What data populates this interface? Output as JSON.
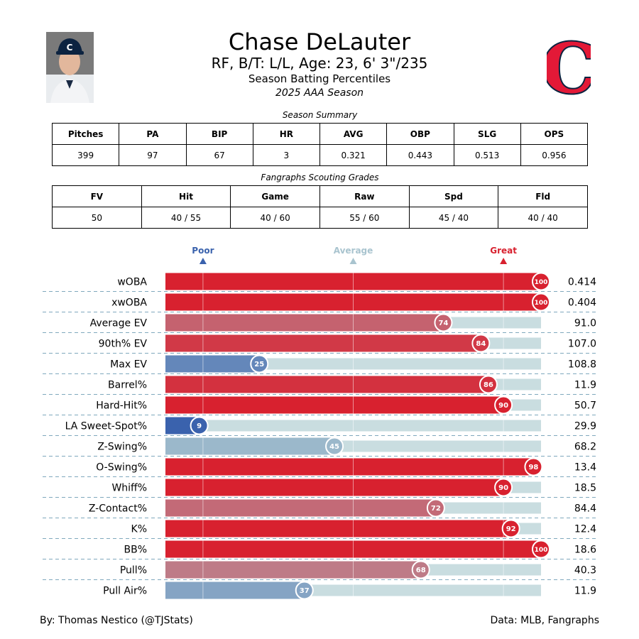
{
  "header": {
    "player_name": "Chase DeLauter",
    "player_info": "RF, B/T: L/L, Age: 23, 6' 3\"/235",
    "report_title": "Season Batting Percentiles",
    "season_label": "2025 AAA Season",
    "logo_letter": "C",
    "logo_color": "#e31937",
    "logo_outline": "#0c2340"
  },
  "summary": {
    "caption": "Season Summary",
    "columns": [
      "Pitches",
      "PA",
      "BIP",
      "HR",
      "AVG",
      "OBP",
      "SLG",
      "OPS"
    ],
    "values": [
      "399",
      "97",
      "67",
      "3",
      "0.321",
      "0.443",
      "0.513",
      "0.956"
    ]
  },
  "grades": {
    "caption": "Fangraphs Scouting Grades",
    "columns": [
      "FV",
      "Hit",
      "Game",
      "Raw",
      "Spd",
      "Fld"
    ],
    "values": [
      "50",
      "40 / 55",
      "40 / 60",
      "55 / 60",
      "45 / 40",
      "40 / 40"
    ]
  },
  "chart_data": {
    "type": "bar",
    "orientation": "horizontal",
    "xlim": [
      0,
      100
    ],
    "scale_markers": [
      {
        "label": "Poor",
        "value": 10,
        "color": "#3a62ad"
      },
      {
        "label": "Average",
        "value": 50,
        "color": "#a9c4cf"
      },
      {
        "label": "Great",
        "value": 90,
        "color": "#d8212f"
      }
    ],
    "categories": [
      "wOBA",
      "xwOBA",
      "Average EV",
      "90th% EV",
      "Max EV",
      "Barrel%",
      "Hard-Hit%",
      "LA Sweet-Spot%",
      "Z-Swing%",
      "O-Swing%",
      "Whiff%",
      "Z-Contact%",
      "K%",
      "BB%",
      "Pull%",
      "Pull Air%"
    ],
    "percentiles": [
      100,
      100,
      74,
      84,
      25,
      86,
      90,
      9,
      45,
      98,
      90,
      72,
      92,
      100,
      68,
      37
    ],
    "stat_values": [
      "0.414",
      "0.404",
      "91.0",
      "107.0",
      "108.8",
      "11.9",
      "50.7",
      "29.9",
      "68.2",
      "13.4",
      "18.5",
      "84.4",
      "12.4",
      "18.6",
      "40.3",
      "11.9"
    ]
  },
  "footer": {
    "credit": "By: Thomas Nestico (@TJStats)",
    "source": "Data: MLB, Fangraphs"
  }
}
